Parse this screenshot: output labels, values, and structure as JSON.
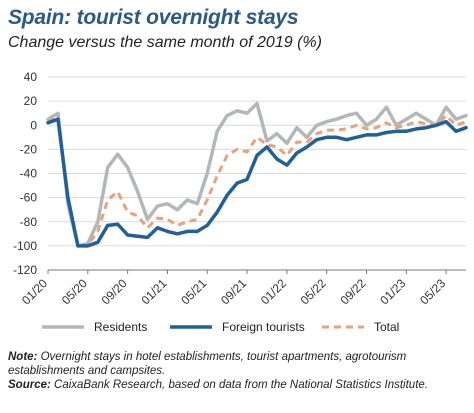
{
  "header": {
    "title": "Spain: tourist overnight stays",
    "subtitle": "Change versus the same month of 2019 (%)"
  },
  "notes": {
    "note_label": "Note:",
    "note_text": "Overnight stays in hotel establishments, tourist apartments, agrotourism establishments and campsites.",
    "source_label": "Source:",
    "source_text": "CaixaBank Research, based on data from the National Statistics Institute."
  },
  "chart_data": {
    "type": "line",
    "x_start": "01/20",
    "x": [
      "01/20",
      "02/20",
      "03/20",
      "04/20",
      "05/20",
      "06/20",
      "07/20",
      "08/20",
      "09/20",
      "10/20",
      "11/20",
      "12/20",
      "01/21",
      "02/21",
      "03/21",
      "04/21",
      "05/21",
      "06/21",
      "07/21",
      "08/21",
      "09/21",
      "10/21",
      "11/21",
      "12/21",
      "01/22",
      "02/22",
      "03/22",
      "04/22",
      "05/22",
      "06/22",
      "07/22",
      "08/22",
      "09/22",
      "10/22",
      "11/22",
      "12/22",
      "01/23",
      "02/23",
      "03/23",
      "04/23",
      "05/23",
      "06/23",
      "07/23"
    ],
    "x_tick_labels": [
      "01/20",
      "05/20",
      "09/20",
      "01/21",
      "05/21",
      "09/21",
      "01/22",
      "05/22",
      "09/22",
      "01/23",
      "05/23"
    ],
    "ylim": [
      -120,
      40
    ],
    "y_ticks": [
      40,
      20,
      0,
      -20,
      -40,
      -60,
      -80,
      -100,
      -120
    ],
    "grid": "horizontal",
    "legend_position": "bottom",
    "colors": {
      "residents": "#b3b7b8",
      "foreign": "#1f5f9a",
      "total": "#e8a27a",
      "grid": "#d9d9d9",
      "title": "#2a5a86"
    },
    "series": [
      {
        "name": "Residents",
        "style": "solid",
        "values": [
          5,
          10,
          -65,
          -100,
          -98,
          -80,
          -35,
          -24,
          -35,
          -55,
          -78,
          -67,
          -65,
          -70,
          -62,
          -65,
          -40,
          -5,
          8,
          12,
          10,
          18,
          -13,
          -7,
          -15,
          -2,
          -10,
          0,
          3,
          5,
          8,
          10,
          0,
          5,
          15,
          0,
          5,
          10,
          5,
          0,
          15,
          5,
          8
        ]
      },
      {
        "name": "Foreign tourists",
        "style": "solid",
        "values": [
          2,
          5,
          -60,
          -100,
          -100,
          -97,
          -83,
          -82,
          -91,
          -92,
          -93,
          -85,
          -88,
          -90,
          -88,
          -88,
          -83,
          -72,
          -58,
          -48,
          -45,
          -25,
          -18,
          -28,
          -33,
          -23,
          -18,
          -12,
          -10,
          -10,
          -12,
          -10,
          -8,
          -8,
          -6,
          -5,
          -5,
          -3,
          -2,
          0,
          3,
          -5,
          -2
        ]
      },
      {
        "name": "Total",
        "style": "dashed",
        "values": [
          3,
          7,
          -62,
          -100,
          -99,
          -88,
          -62,
          -55,
          -72,
          -75,
          -85,
          -77,
          -78,
          -83,
          -80,
          -78,
          -62,
          -42,
          -25,
          -20,
          -22,
          -10,
          -16,
          -18,
          -25,
          -14,
          -14,
          -7,
          -4,
          -4,
          -3,
          0,
          -3,
          -2,
          2,
          -2,
          0,
          3,
          1,
          0,
          8,
          0,
          3
        ]
      }
    ]
  }
}
